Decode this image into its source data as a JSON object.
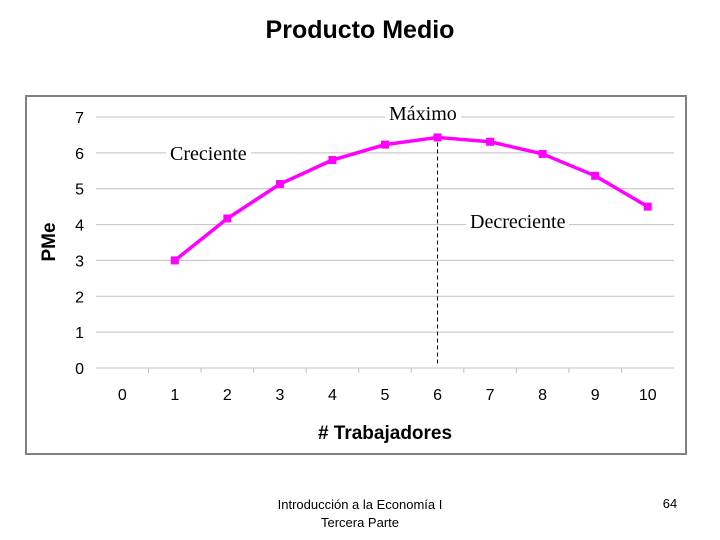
{
  "slide": {
    "title": "Producto Medio",
    "footer_line1": "Introducción a la Economía I",
    "footer_line2": "Tercera Parte",
    "page_number": "64"
  },
  "annotations": {
    "maximo": "Máximo",
    "creciente": "Creciente",
    "decreciente": "Decreciente"
  },
  "chart_data": {
    "type": "line",
    "title": "",
    "xlabel": "# Trabajadores",
    "ylabel": "PMe",
    "x": [
      1,
      2,
      3,
      4,
      5,
      6,
      7,
      8,
      9,
      10
    ],
    "series": [
      {
        "values": [
          3.0,
          4.17,
          5.13,
          5.8,
          6.23,
          6.43,
          6.31,
          5.97,
          5.36,
          4.5
        ]
      }
    ],
    "x_ticks": [
      "0",
      "1",
      "2",
      "3",
      "4",
      "5",
      "6",
      "7",
      "8",
      "9",
      "10"
    ],
    "y_ticks": [
      "0",
      "1",
      "2",
      "3",
      "4",
      "5",
      "6",
      "7"
    ],
    "xlim": [
      0,
      10
    ],
    "ylim": [
      0,
      7
    ],
    "grid": true,
    "max_marker_x": 6,
    "colors": {
      "line": "#ff00ff",
      "grid": "#c0c0c0",
      "marker_line": "#000000"
    }
  }
}
